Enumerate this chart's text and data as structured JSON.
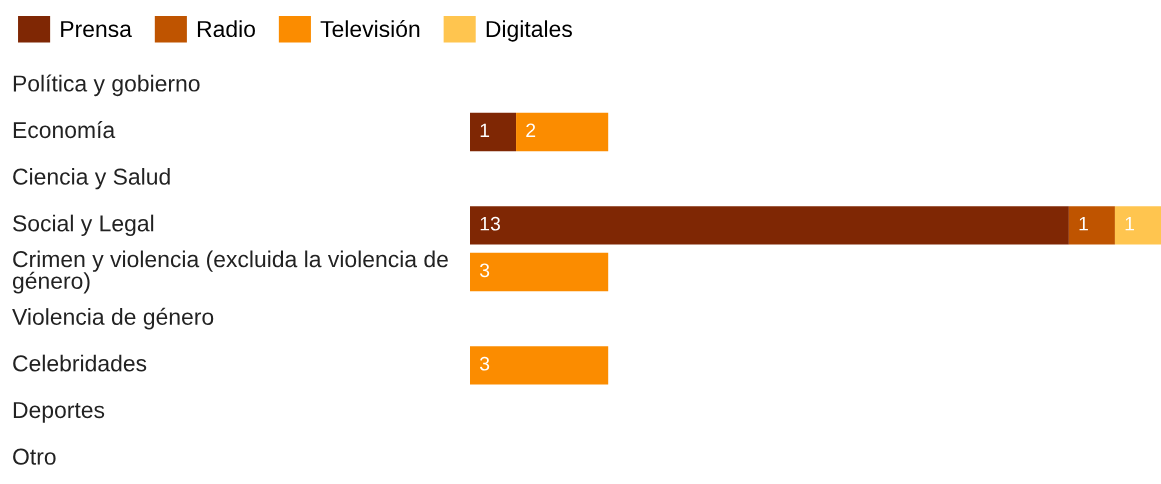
{
  "chart_data": {
    "type": "bar",
    "orientation": "horizontal",
    "stacked": true,
    "data_labels": true,
    "legend": "top left",
    "categories": [
      "Política y gobierno",
      "Economía",
      "Ciencia y Salud",
      "Social y Legal",
      "Crimen y violencia (excluida la violencia de género)",
      "Violencia de género",
      "Celebridades",
      "Deportes",
      "Otro"
    ],
    "series": [
      {
        "name": "Prensa",
        "color": "#7f2704",
        "values": [
          null,
          1,
          null,
          13,
          null,
          null,
          null,
          null,
          null
        ]
      },
      {
        "name": "Radio",
        "color": "#bf5400",
        "values": [
          null,
          null,
          null,
          1,
          null,
          null,
          null,
          null,
          null
        ]
      },
      {
        "name": "Televisión",
        "color": "#fb8c00",
        "values": [
          null,
          2,
          null,
          null,
          3,
          null,
          3,
          null,
          null
        ]
      },
      {
        "name": "Digitales",
        "color": "#ffc54f",
        "values": [
          null,
          null,
          null,
          1,
          null,
          null,
          null,
          null,
          null
        ]
      }
    ]
  }
}
